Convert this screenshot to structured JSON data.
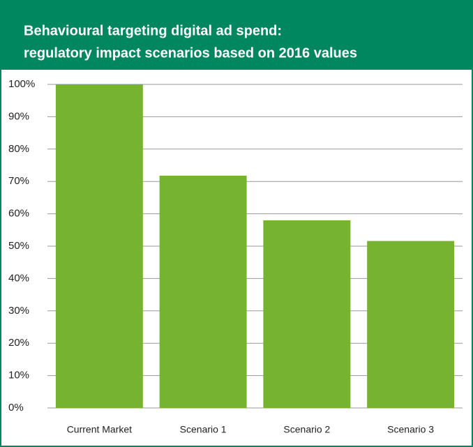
{
  "chart_data": {
    "type": "bar",
    "title": [
      "Behavioural targeting digital ad spend:",
      "regulatory impact scenarios based on 2016 values"
    ],
    "categories": [
      "Current Market",
      "Scenario 1",
      "Scenario 2",
      "Scenario 3"
    ],
    "values": [
      100,
      71.8,
      58,
      51.6
    ],
    "color": "#76b331",
    "ylim": [
      0,
      100
    ],
    "yticks": [
      {
        "value": 0,
        "label": "0%"
      },
      {
        "value": 10,
        "label": "10%"
      },
      {
        "value": 20,
        "label": "20%"
      },
      {
        "value": 30,
        "label": "30%"
      },
      {
        "value": 40,
        "label": "40%"
      },
      {
        "value": 50,
        "label": "50%"
      },
      {
        "value": 60,
        "label": "60%"
      },
      {
        "value": 70,
        "label": "70%"
      },
      {
        "value": 80,
        "label": "80%"
      },
      {
        "value": 90,
        "label": "90%"
      },
      {
        "value": 100,
        "label": "100%"
      }
    ],
    "grid": true
  }
}
